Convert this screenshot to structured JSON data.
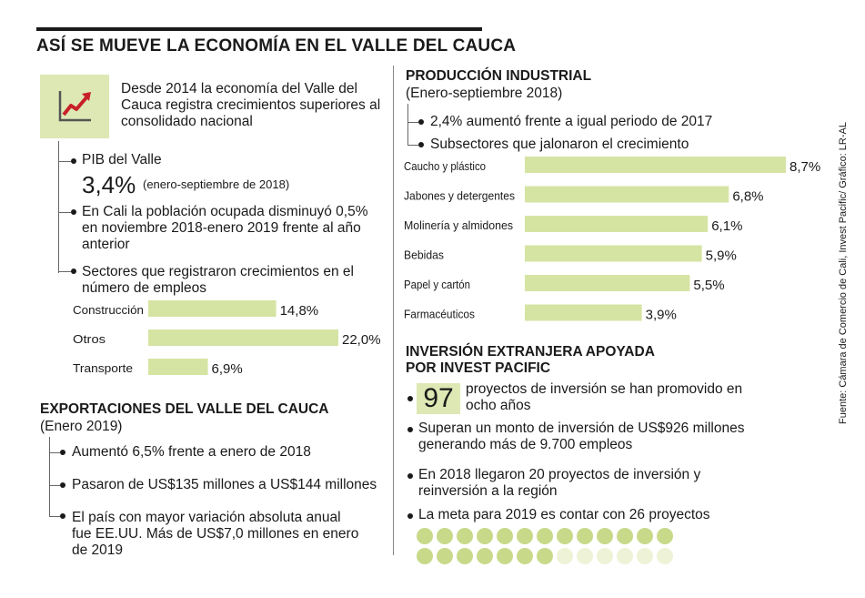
{
  "title": "ASÍ SE MUEVE LA ECONOMÍA EN EL VALLE DEL CAUCA",
  "colors": {
    "bar": "#d6e4a3",
    "dot_filled": "#c8d98a",
    "dot_empty": "#eef3d8",
    "text": "#1a1a1a"
  },
  "icon": "chart-trend-up-icon",
  "intro": "Desde 2014 la economía del Valle del Cauca registra crecimientos superiores al consolidado nacional",
  "pib": {
    "label": "PIB del Valle",
    "value": "3,4%",
    "period": "(enero-septiembre de 2018)"
  },
  "poblacion": "En Cali la población ocupada disminuyó 0,5% en noviembre 2018-enero 2019 frente al año anterior",
  "sectores_label": "Sectores que registraron crecimientos en el número de empleos",
  "exportaciones": {
    "title": "EXPORTACIONES DEL VALLE DEL CAUCA",
    "subtitle": "(Enero 2019)",
    "items": [
      "Aumentó 6,5% frente a enero de 2018",
      "Pasaron de US$135 millones a US$144 millones",
      "El país con mayor variación absoluta anual fue EE.UU. Más de US$7,0 millones en enero de 2019"
    ]
  },
  "produccion": {
    "title": "PRODUCCIÓN INDUSTRIAL",
    "subtitle": "(Enero-septiembre 2018)",
    "items": [
      "2,4% aumentó frente a igual periodo de 2017",
      "Subsectores que jalonaron el crecimiento"
    ]
  },
  "inversion": {
    "title_line1": "INVERSIÓN EXTRANJERA APOYADA",
    "title_line2": "POR INVEST PACIFIC",
    "badge": "97",
    "badge_text": "proyectos de inversión se han promovido en ocho años",
    "items": [
      "Superan un monto de inversión de US$926 millones generando más de 9.700  empleos",
      "En 2018 llegaron 20 proyectos de inversión y reinversión a la región",
      "La meta para 2019 es contar con 26 proyectos"
    ],
    "projects_target": 26,
    "projects_achieved": 20
  },
  "source": "Fuente: Cámara de Comercio de Cali, Invest Pacific/ Gráfico: LR-AL",
  "chart_data": [
    {
      "type": "bar",
      "title": "Sectores que registraron crecimientos en el número de empleos",
      "categories": [
        "Construcción",
        "Otros",
        "Transporte"
      ],
      "values": [
        14.8,
        22.0,
        6.9
      ],
      "value_labels": [
        "14,8%",
        "22,0%",
        "6,9%"
      ],
      "unit": "%"
    },
    {
      "type": "bar",
      "title": "Subsectores que jalonaron el crecimiento",
      "categories": [
        "Caucho y plástico",
        "Jabones y detergentes",
        "Molinería y almidones",
        "Bebidas",
        "Papel y cartón",
        "Farmacéuticos"
      ],
      "values": [
        8.7,
        6.8,
        6.1,
        5.9,
        5.5,
        3.9
      ],
      "value_labels": [
        "8,7%",
        "6,8%",
        "6,1%",
        "5,9%",
        "5,5%",
        "3,9%"
      ],
      "unit": "%"
    }
  ]
}
